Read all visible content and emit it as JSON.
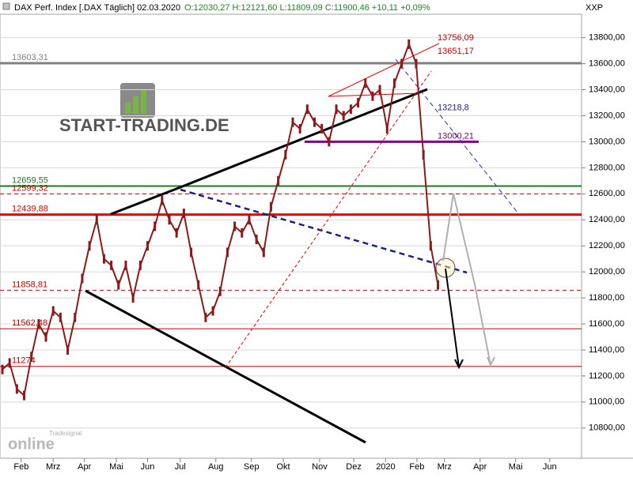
{
  "header": {
    "instrument": "DAX Perf. Index [.DAX Täglich] 02.03.2020",
    "ohlc": "O:12030,27 H:12121,60 L:11809,09 C:11900,46 +10,11 +0,09%",
    "axis_currency": "XXP"
  },
  "logo": {
    "brand": "START-TRADING.DE",
    "product": "online",
    "provider": "Tradesignal"
  },
  "chart_data": {
    "type": "line",
    "color": "#8b1a1a",
    "values": [
      11250,
      11300,
      11100,
      11050,
      11350,
      11600,
      11500,
      11700,
      11650,
      11400,
      11650,
      11950,
      12200,
      12400,
      12100,
      12050,
      11900,
      12050,
      11800,
      12050,
      12200,
      12350,
      12550,
      12400,
      12300,
      12450,
      12150,
      11900,
      11650,
      11700,
      11850,
      12150,
      12350,
      12300,
      12400,
      12250,
      12150,
      12500,
      12700,
      12900,
      13150,
      13100,
      13250,
      13150,
      13100,
      13000,
      13250,
      13200,
      13250,
      13300,
      13450,
      13350,
      13400,
      13100,
      13450,
      13600,
      13750,
      13600,
      12900,
      12200,
      11900
    ],
    "xlim": [
      0,
      80
    ],
    "ylim": [
      10580,
      13980
    ],
    "xticks": [
      {
        "value": 2.6,
        "label": "Feb"
      },
      {
        "value": 7,
        "label": "Mrz"
      },
      {
        "value": 11.3,
        "label": "Apr"
      },
      {
        "value": 15.7,
        "label": "Mai"
      },
      {
        "value": 20,
        "label": "Jun"
      },
      {
        "value": 24.5,
        "label": "Jul"
      },
      {
        "value": 29.4,
        "label": "Aug"
      },
      {
        "value": 34.3,
        "label": "Sep"
      },
      {
        "value": 38.7,
        "label": "Okt"
      },
      {
        "value": 43.7,
        "label": "Nov"
      },
      {
        "value": 48.4,
        "label": "Dez"
      },
      {
        "value": 52.8,
        "label": "2020"
      },
      {
        "value": 57.1,
        "label": "Feb"
      },
      {
        "value": 60.9,
        "label": "Mrz"
      },
      {
        "value": 65.8,
        "label": "Apr"
      },
      {
        "value": 70.7,
        "label": "Mai"
      },
      {
        "value": 75.4,
        "label": "Jun"
      }
    ],
    "yticks": [
      {
        "value": 10800,
        "label": "10800,00"
      },
      {
        "value": 11000,
        "label": "11000,00"
      },
      {
        "value": 11200,
        "label": "11200,00"
      },
      {
        "value": 11400,
        "label": "11400,00"
      },
      {
        "value": 11600,
        "label": "11600,00"
      },
      {
        "value": 11800,
        "label": "11800,00"
      },
      {
        "value": 12000,
        "label": "12000,00"
      },
      {
        "value": 12200,
        "label": "12200,00"
      },
      {
        "value": 12400,
        "label": "12400,00"
      },
      {
        "value": 12600,
        "label": "12600,00"
      },
      {
        "value": 12800,
        "label": "12800,00"
      },
      {
        "value": 13000,
        "label": "13000,00"
      },
      {
        "value": 13200,
        "label": "13200,00"
      },
      {
        "value": 13400,
        "label": "13400,00"
      },
      {
        "value": 13600,
        "label": "13600,00"
      },
      {
        "value": 13800,
        "label": "13800,00"
      }
    ],
    "grid": true,
    "levels": [
      {
        "value": 13603.31,
        "label": "13603,31",
        "color": "#808080",
        "extent": "full",
        "width": 3,
        "dash": false,
        "label_side": "left"
      },
      {
        "value": 13756.09,
        "label": "13756,09",
        "color": "#c00000",
        "extent": "none",
        "width": 1,
        "dash": false,
        "label_side": "right"
      },
      {
        "value": 13651.17,
        "label": "13651,17",
        "color": "#c00000",
        "extent": "none",
        "width": 1,
        "dash": false,
        "label_side": "right"
      },
      {
        "value": 13218.8,
        "label": "13218,8",
        "color": "#2020a0",
        "extent": "none",
        "width": 1,
        "dash": false,
        "label_side": "right"
      },
      {
        "value": 13000.21,
        "label": "13000,21",
        "color": "#800080",
        "extent": "segment",
        "width": 3,
        "dash": false,
        "label_side": "right"
      },
      {
        "value": 12659.55,
        "label": "12659,55",
        "color": "#1e7b1e",
        "extent": "full",
        "width": 2,
        "dash": false,
        "label_side": "left"
      },
      {
        "value": 12599.32,
        "label": "12599,32",
        "color": "#c00000",
        "extent": "full",
        "width": 1,
        "dash": true,
        "label_side": "left"
      },
      {
        "value": 12439.88,
        "label": "12439,88",
        "color": "#e00000",
        "extent": "full",
        "width": 3,
        "dash": false,
        "label_side": "left"
      },
      {
        "value": 11858.81,
        "label": "11858,81",
        "color": "#c00000",
        "extent": "full",
        "width": 1,
        "dash": true,
        "label_side": "left"
      },
      {
        "value": 11562.48,
        "label": "11562,48",
        "color": "#c00000",
        "extent": "full",
        "width": 1,
        "dash": false,
        "label_side": "left"
      },
      {
        "value": 11274,
        "label": "11274",
        "color": "#c00000",
        "extent": "full",
        "width": 1,
        "dash": false,
        "label_side": "left"
      }
    ]
  }
}
